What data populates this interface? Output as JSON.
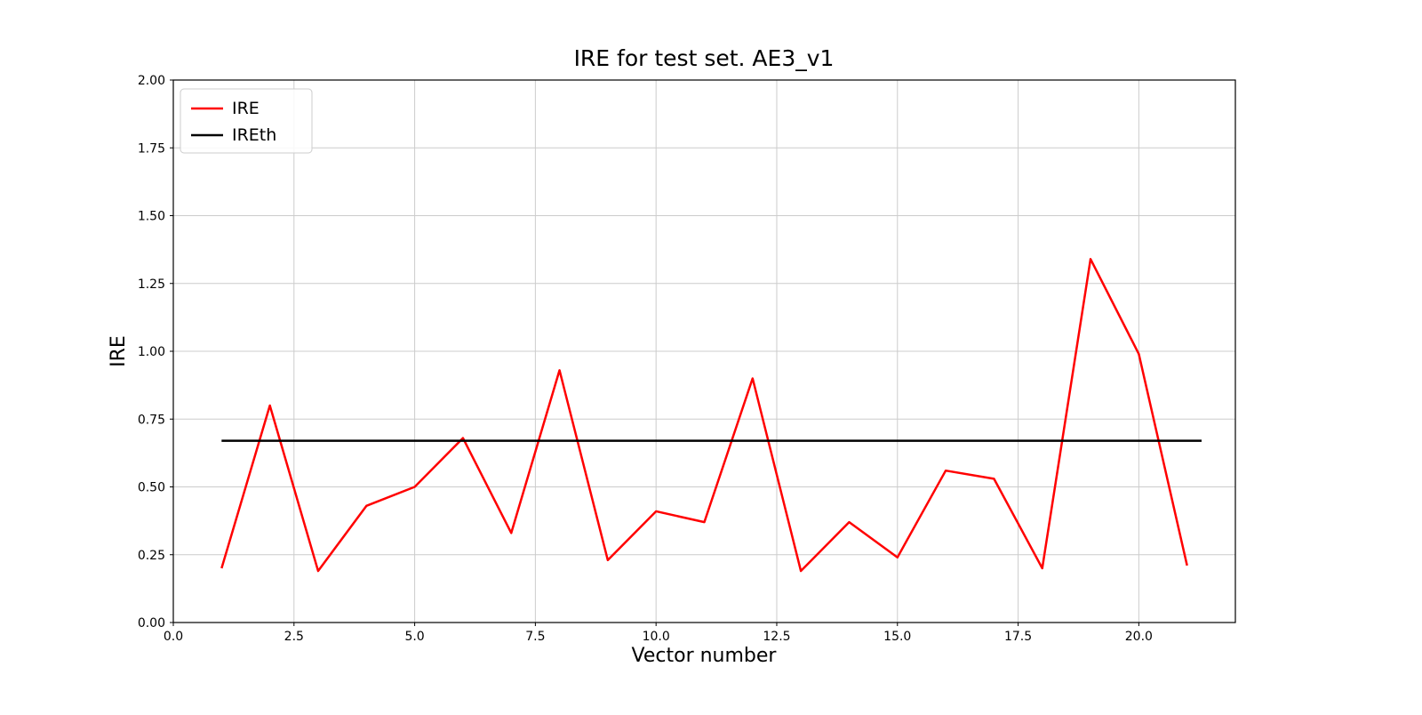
{
  "figure": {
    "background": "#ffffff"
  },
  "chart_data": {
    "type": "line",
    "title": "IRE for test set. AE3_v1",
    "xlabel": "Vector number",
    "ylabel": "IRE",
    "xlim": [
      0,
      22
    ],
    "ylim": [
      0,
      2
    ],
    "grid": true,
    "legend_position": "upper left",
    "xticks": [
      0,
      2.5,
      5,
      7.5,
      10,
      12.5,
      15,
      17.5,
      20
    ],
    "xtick_labels": [
      "0.0",
      "2.5",
      "5.0",
      "7.5",
      "10.0",
      "12.5",
      "15.0",
      "17.5",
      "20.0"
    ],
    "yticks": [
      0,
      0.25,
      0.5,
      0.75,
      1,
      1.25,
      1.5,
      1.75,
      2
    ],
    "ytick_labels": [
      "0.00",
      "0.25",
      "0.50",
      "0.75",
      "1.00",
      "1.25",
      "1.50",
      "1.75",
      "2.00"
    ],
    "series": [
      {
        "name": "IRE",
        "color": "#ff0000",
        "x": [
          1,
          2,
          3,
          4,
          5,
          6,
          7,
          8,
          9,
          10,
          11,
          12,
          13,
          14,
          15,
          16,
          17,
          18,
          19,
          20,
          21
        ],
        "y": [
          0.2,
          0.8,
          0.19,
          0.43,
          0.5,
          0.68,
          0.33,
          0.93,
          0.23,
          0.41,
          0.37,
          0.9,
          0.19,
          0.37,
          0.24,
          0.56,
          0.53,
          0.2,
          1.34,
          0.99,
          0.21
        ]
      },
      {
        "name": "IREth",
        "color": "#000000",
        "x": [
          1,
          21.3
        ],
        "y": [
          0.67,
          0.67
        ]
      }
    ],
    "colors": {
      "grid": "#cccccc",
      "spine": "#000000"
    }
  }
}
